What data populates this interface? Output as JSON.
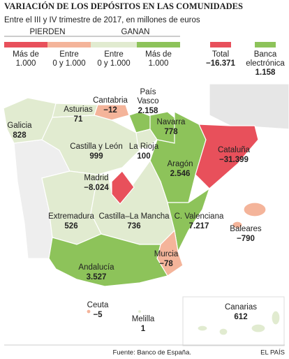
{
  "header": {
    "title": "VARIACIÓN DE LOS DEPÓSITOS EN LAS COMUNIDADES",
    "subtitle": "Entre el III y IV trimestre de 2017, en millones de euros"
  },
  "legend": {
    "groups": [
      "PIERDEN",
      "GANAN"
    ],
    "items": [
      {
        "lines": [
          "Más de",
          "1.000"
        ]
      },
      {
        "lines": [
          "Entre",
          "0 y 1.000"
        ]
      },
      {
        "lines": [
          "Entre",
          "0 y 1.000"
        ]
      },
      {
        "lines": [
          "Más de",
          "1.000"
        ]
      }
    ]
  },
  "totals": [
    {
      "lines": [
        "Total"
      ],
      "value": "−16.371"
    },
    {
      "lines": [
        "Banca",
        "electrónica"
      ],
      "value": "1.158"
    }
  ],
  "regions": [
    {
      "lines": [
        "Galicia"
      ],
      "value": "828"
    },
    {
      "lines": [
        "Asturias"
      ],
      "value": "71"
    },
    {
      "lines": [
        "Cantabria"
      ],
      "value": "−12"
    },
    {
      "lines": [
        "País",
        "Vasco"
      ],
      "value": "2.158"
    },
    {
      "lines": [
        "Navarra"
      ],
      "value": "778"
    },
    {
      "lines": [
        "Castilla y León"
      ],
      "value": "999"
    },
    {
      "lines": [
        "La Rioja"
      ],
      "value": "100"
    },
    {
      "lines": [
        "Aragón"
      ],
      "value": "2.546"
    },
    {
      "lines": [
        "Cataluña"
      ],
      "value": "−31.399"
    },
    {
      "lines": [
        "Madrid"
      ],
      "value": "−8.024"
    },
    {
      "lines": [
        "Extremadura"
      ],
      "value": "526"
    },
    {
      "lines": [
        "Castilla–La Mancha"
      ],
      "value": "736"
    },
    {
      "lines": [
        "C. Valenciana"
      ],
      "value": "7.217"
    },
    {
      "lines": [
        "Baleares"
      ],
      "value": "−790"
    },
    {
      "lines": [
        "Murcia"
      ],
      "value": "−78"
    },
    {
      "lines": [
        "Andalucía"
      ],
      "value": "3.527"
    },
    {
      "lines": [
        "Ceuta"
      ],
      "value": "−5"
    },
    {
      "lines": [
        "Melilla"
      ],
      "value": "1"
    },
    {
      "lines": [
        "Canarias"
      ],
      "value": "612"
    }
  ],
  "footer": {
    "source": "Fuente: Banco de España.",
    "brand": "EL PAÍS"
  }
}
